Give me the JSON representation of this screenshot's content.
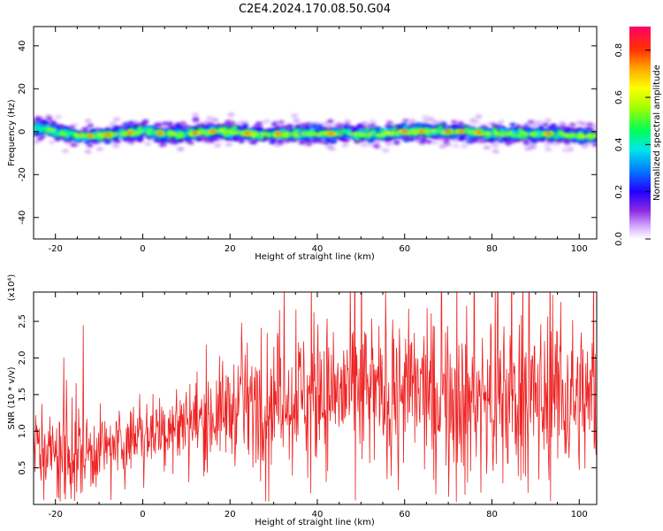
{
  "title": "C2E4.2024.170.08.50.G04",
  "colors": {
    "snr_line": "#ee2222",
    "axis": "#000000",
    "background": "#ffffff"
  },
  "chart_data": [
    {
      "type": "heatmap",
      "name": "spectrogram",
      "xlabel": "Height of straight line (km)",
      "ylabel": "Frequency (Hz)",
      "xlim": [
        -25,
        104
      ],
      "ylim": [
        -50,
        49
      ],
      "x_ticks": [
        -20,
        0,
        20,
        40,
        60,
        80,
        100
      ],
      "y_ticks": [
        -40,
        -20,
        0,
        20,
        40
      ],
      "x_tick_labels": [
        "-20",
        "0",
        "20",
        "40",
        "60",
        "80",
        "100"
      ],
      "y_tick_labels": [
        "-40",
        "-20",
        "0",
        "20",
        "40"
      ],
      "band_center_hz": [
        [
          -25,
          2
        ],
        [
          -22,
          1
        ],
        [
          -20,
          0
        ],
        [
          -15,
          -2
        ],
        [
          -10,
          -2
        ],
        [
          -5,
          -1
        ],
        [
          0,
          0
        ],
        [
          5,
          -1
        ],
        [
          10,
          -1
        ],
        [
          15,
          0
        ],
        [
          20,
          0
        ],
        [
          25,
          -1
        ],
        [
          30,
          -1
        ],
        [
          35,
          -1
        ],
        [
          40,
          -1
        ],
        [
          45,
          -1
        ],
        [
          50,
          -1
        ],
        [
          55,
          -1
        ],
        [
          60,
          0
        ],
        [
          65,
          0
        ],
        [
          70,
          0
        ],
        [
          75,
          0
        ],
        [
          80,
          -1
        ],
        [
          85,
          -1
        ],
        [
          90,
          -1
        ],
        [
          95,
          -1
        ],
        [
          100,
          -2
        ],
        [
          104,
          -2
        ]
      ],
      "hot_spots_km": [
        -12,
        -8,
        -3,
        4,
        12,
        16,
        24,
        31,
        43,
        60,
        64,
        70,
        73,
        77,
        93
      ]
    },
    {
      "type": "colorbar",
      "name": "amplitude-colorbar",
      "label": "Normalized spectral amplitude",
      "range": [
        0,
        0.9
      ],
      "ticks": [
        0.0,
        0.2,
        0.4,
        0.6,
        0.8
      ],
      "tick_labels": [
        "0.0",
        "0.2",
        "0.4",
        "0.6",
        "0.8"
      ],
      "stops": [
        [
          0.0,
          "#ffffff"
        ],
        [
          0.05,
          "#d8b0ff"
        ],
        [
          0.12,
          "#8a2be2"
        ],
        [
          0.2,
          "#2200ff"
        ],
        [
          0.3,
          "#0088ff"
        ],
        [
          0.38,
          "#00e8e8"
        ],
        [
          0.46,
          "#00ff55"
        ],
        [
          0.56,
          "#a8ff00"
        ],
        [
          0.64,
          "#ffff00"
        ],
        [
          0.72,
          "#ffaa00"
        ],
        [
          0.8,
          "#ff3300"
        ],
        [
          0.9,
          "#ff0066"
        ]
      ]
    },
    {
      "type": "line",
      "name": "snr",
      "xlabel": "Height of straight line (km)",
      "ylabel": "SNR (10 * v/v)",
      "y_multiplier": "(x10⁴)",
      "xlim": [
        -25,
        104
      ],
      "ylim": [
        0,
        29000
      ],
      "x_ticks": [
        -20,
        0,
        20,
        40,
        60,
        80,
        100
      ],
      "y_ticks": [
        5000,
        10000,
        15000,
        20000,
        25000
      ],
      "x_tick_labels": [
        "-20",
        "0",
        "20",
        "40",
        "60",
        "80",
        "100"
      ],
      "y_tick_labels": [
        "0.5",
        "1.0",
        "1.5",
        "2.0",
        "2.5"
      ],
      "envelope": {
        "x": [
          -25,
          -20,
          -15,
          -10,
          -5,
          0,
          5,
          10,
          15,
          20,
          25,
          30,
          35,
          40,
          45,
          50,
          55,
          60,
          65,
          70,
          75,
          80,
          85,
          90,
          95,
          100,
          104
        ],
        "mean": [
          8000,
          6500,
          7000,
          7500,
          8500,
          9500,
          10500,
          11000,
          12000,
          13000,
          14000,
          14500,
          15000,
          15000,
          15500,
          15000,
          15000,
          15500,
          15000,
          15000,
          14500,
          14500,
          15000,
          14500,
          15000,
          14500,
          14000
        ],
        "spread": [
          4000,
          5000,
          6000,
          4000,
          3500,
          3500,
          4000,
          4500,
          5000,
          5500,
          6000,
          6500,
          7000,
          7500,
          8000,
          8000,
          8500,
          8000,
          8000,
          8000,
          8500,
          8500,
          9000,
          8500,
          8500,
          8000,
          7500
        ]
      }
    }
  ]
}
